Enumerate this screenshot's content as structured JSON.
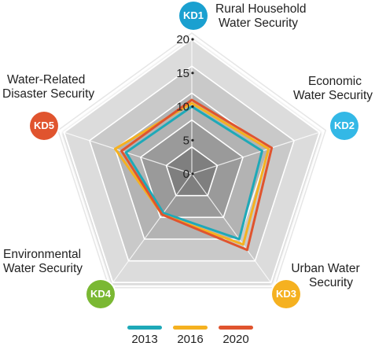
{
  "chart_data": {
    "type": "radar",
    "axes": [
      {
        "code": "KD1",
        "label_lines": [
          "Rural Household",
          "Water Security"
        ],
        "color": "#1aa0d0"
      },
      {
        "code": "KD2",
        "label_lines": [
          "Economic",
          "Water Security"
        ],
        "color": "#33b8e6"
      },
      {
        "code": "KD3",
        "label_lines": [
          "Urban Water",
          "Security"
        ],
        "color": "#f5b120"
      },
      {
        "code": "KD4",
        "label_lines": [
          "Environmental",
          "Water Security"
        ],
        "color": "#7ab833"
      },
      {
        "code": "KD5",
        "label_lines": [
          "Water-Related",
          "Disaster Security"
        ],
        "color": "#e0542e"
      }
    ],
    "ticks": [
      "0",
      "5",
      "10",
      "15",
      "20"
    ],
    "range": [
      0,
      20
    ],
    "series": [
      {
        "name": "2013",
        "color": "#1ea9b8",
        "values": [
          10,
          11,
          12,
          7.2,
          10.3
        ]
      },
      {
        "name": "2016",
        "color": "#f5b120",
        "values": [
          10.5,
          12,
          13,
          7.5,
          12
        ]
      },
      {
        "name": "2020",
        "color": "#e0542e",
        "values": [
          11,
          12.5,
          14,
          7.5,
          11
        ]
      }
    ],
    "legend_position": "bottom"
  }
}
